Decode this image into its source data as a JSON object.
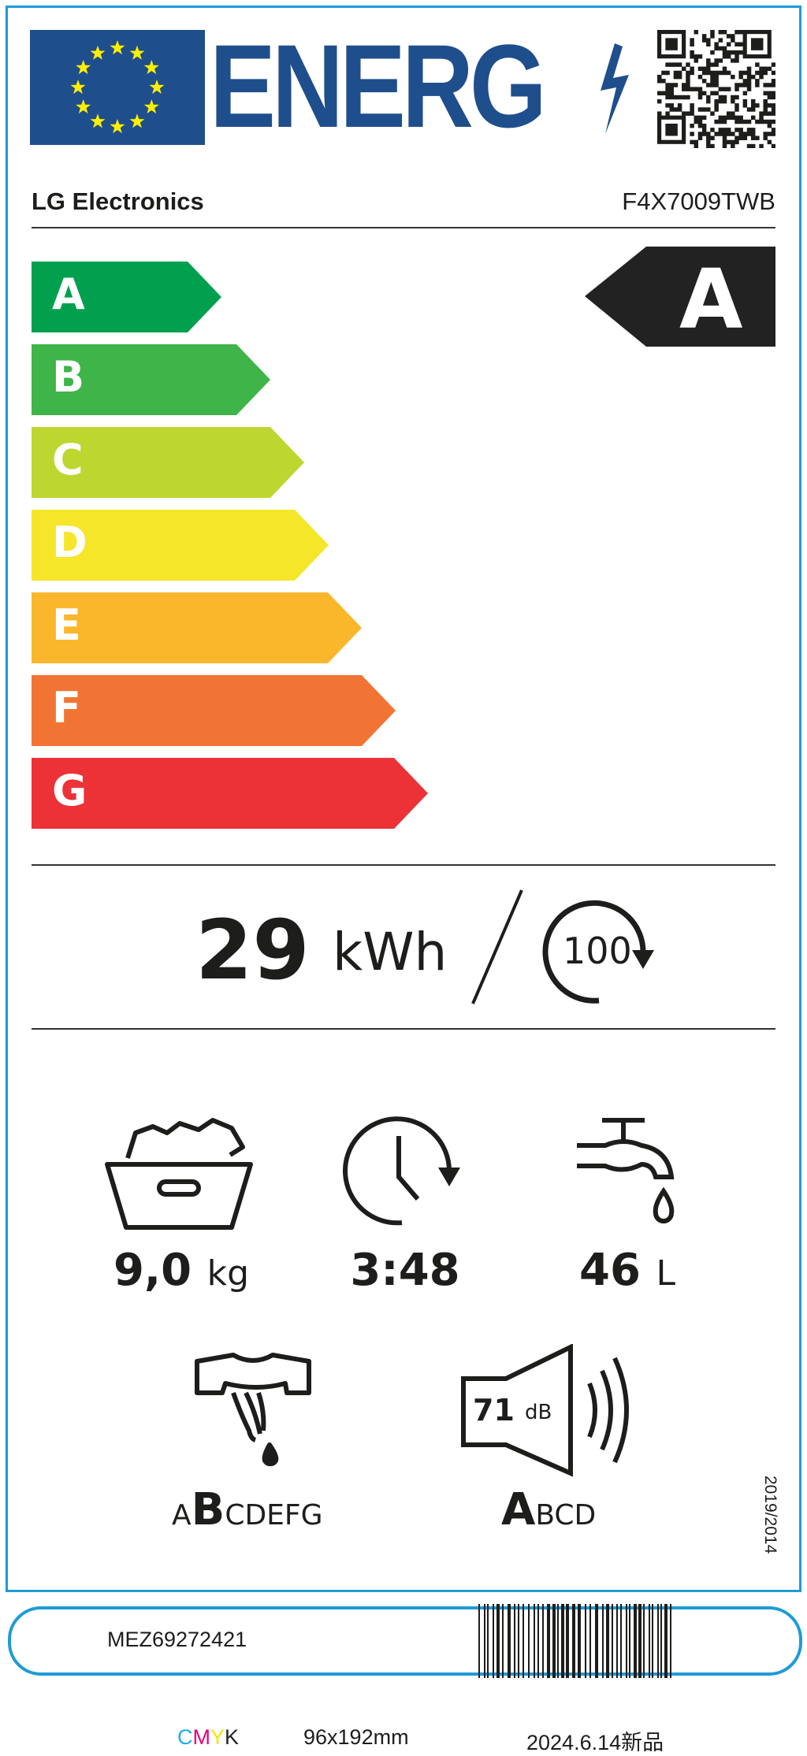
{
  "header": {
    "logo_text": "ENERG",
    "supplier": "LG Electronics",
    "model": "F4X7009TWB"
  },
  "energy_scale": {
    "classes": [
      {
        "letter": "A",
        "color": "#00a04f"
      },
      {
        "letter": "B",
        "color": "#3fb449"
      },
      {
        "letter": "C",
        "color": "#bed630"
      },
      {
        "letter": "D",
        "color": "#f5e629"
      },
      {
        "letter": "E",
        "color": "#fbb72b"
      },
      {
        "letter": "F",
        "color": "#f27435"
      },
      {
        "letter": "G",
        "color": "#ec3237"
      }
    ],
    "rating": "A",
    "rating_color": "#222222"
  },
  "consumption": {
    "value": "29",
    "unit": "kWh",
    "cycles": "100"
  },
  "specs": {
    "capacity": {
      "value": "9,0",
      "unit": "kg",
      "icon": "laundry-basket-icon"
    },
    "duration": {
      "value": "3:48",
      "icon": "clock-icon"
    },
    "water": {
      "value": "46",
      "unit": "L",
      "icon": "water-tap-icon"
    },
    "spin_class": {
      "before": "A",
      "highlight": "B",
      "after": "CDEFG",
      "icon": "spin-drying-shirt-icon"
    },
    "noise": {
      "value": "71",
      "unit": "dB",
      "before": "",
      "highlight": "A",
      "after": "BCD",
      "icon": "speaker-icon"
    }
  },
  "regulation": "2019/2014",
  "footer": {
    "part_number": "MEZ69272421",
    "cmyk": [
      "C",
      "M",
      "Y",
      "K"
    ],
    "cmyk_colors": [
      "#1eaee8",
      "#e5007e",
      "#f5e500",
      "#222222"
    ],
    "size": "96x192mm",
    "date": "2024.6.14新品"
  },
  "colors": {
    "border": "#1e9bd7",
    "eu_blue": "#1f4e8c",
    "eu_star": "#ffee00"
  }
}
